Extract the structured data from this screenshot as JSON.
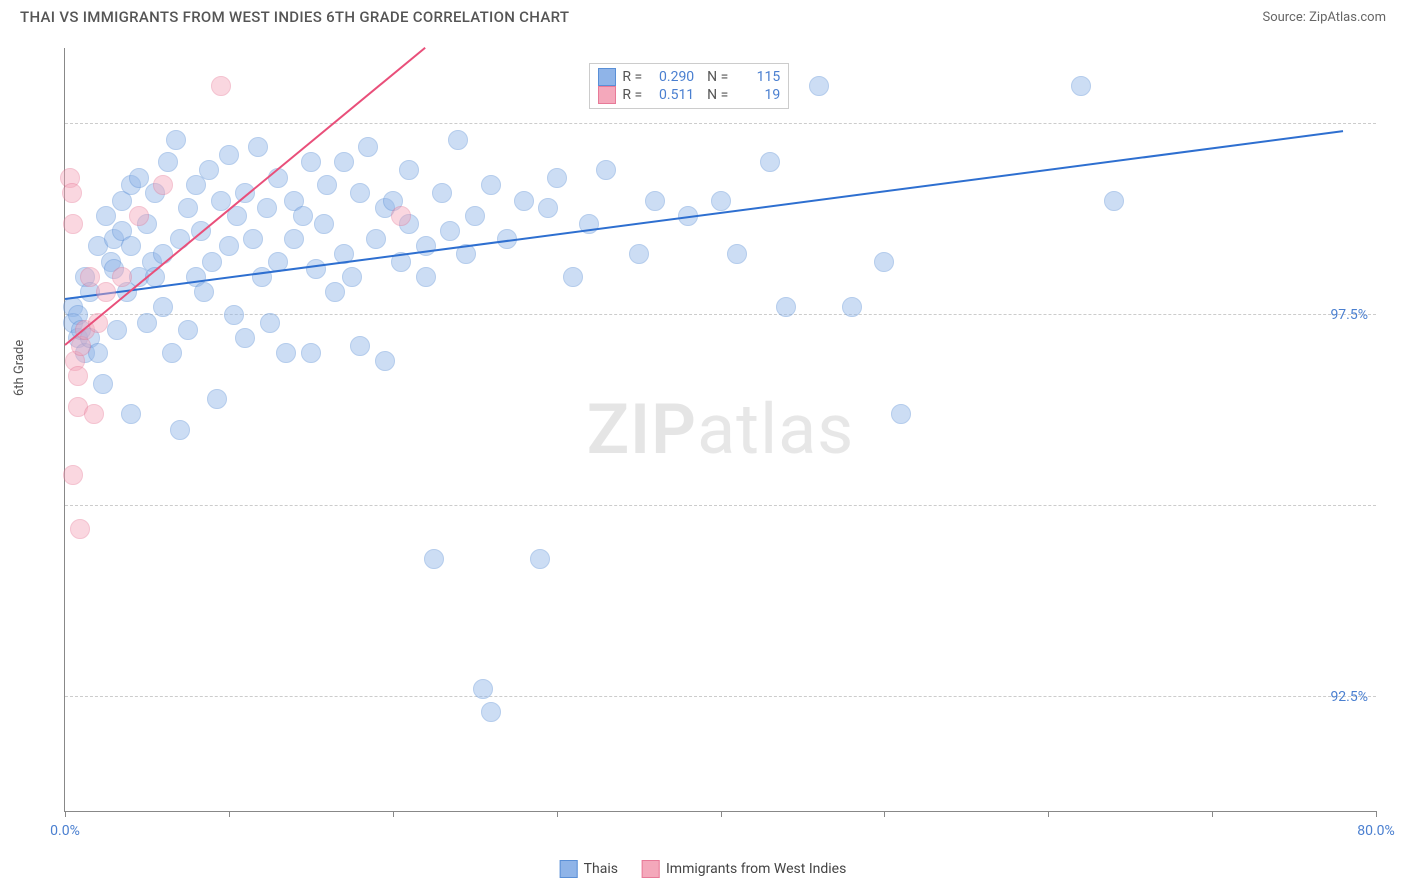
{
  "header": {
    "title": "THAI VS IMMIGRANTS FROM WEST INDIES 6TH GRADE CORRELATION CHART",
    "source": "Source: ZipAtlas.com"
  },
  "chart": {
    "type": "scatter",
    "ylabel": "6th Grade",
    "watermark_a": "ZIP",
    "watermark_b": "atlas",
    "background_color": "#ffffff",
    "grid_color": "#cccccc",
    "axis_color": "#888888",
    "tick_label_color": "#4a7fd0",
    "xlim": [
      0,
      80
    ],
    "ylim": [
      91,
      101
    ],
    "x_ticks": [
      0,
      10,
      20,
      30,
      40,
      50,
      60,
      70,
      80
    ],
    "x_tick_labels": {
      "0": "0.0%",
      "80": "80.0%"
    },
    "y_gridlines": [
      92.5,
      95.0,
      97.5,
      100.0
    ],
    "y_tick_labels": {
      "92.5": "92.5%",
      "95.0": "95.0%",
      "97.5": "97.5%",
      "100.0": "100.0%"
    },
    "marker_radius": 10,
    "marker_opacity": 0.45,
    "trend_line_width": 2,
    "series": [
      {
        "name": "Thais",
        "label": "Thais",
        "fill_color": "#8fb4e8",
        "stroke_color": "#5a8fd6",
        "trend_color": "#2e6fd0",
        "r": "0.290",
        "n": "115",
        "trend": {
          "x1": 0,
          "y1": 97.7,
          "x2": 78,
          "y2": 99.9
        },
        "points": [
          [
            0.5,
            97.6
          ],
          [
            0.5,
            97.4
          ],
          [
            0.8,
            97.2
          ],
          [
            0.8,
            97.5
          ],
          [
            1.0,
            97.3
          ],
          [
            1.2,
            98.0
          ],
          [
            1.2,
            97.0
          ],
          [
            1.5,
            97.8
          ],
          [
            1.5,
            97.2
          ],
          [
            2.0,
            98.4
          ],
          [
            2.0,
            97.0
          ],
          [
            2.3,
            96.6
          ],
          [
            2.5,
            98.8
          ],
          [
            2.8,
            98.2
          ],
          [
            3.0,
            98.1
          ],
          [
            3.0,
            98.5
          ],
          [
            3.2,
            97.3
          ],
          [
            3.5,
            98.6
          ],
          [
            3.5,
            99.0
          ],
          [
            3.8,
            97.8
          ],
          [
            4.0,
            98.4
          ],
          [
            4.0,
            99.2
          ],
          [
            4.0,
            96.2
          ],
          [
            4.5,
            98.0
          ],
          [
            4.5,
            99.3
          ],
          [
            5.0,
            97.4
          ],
          [
            5.0,
            98.7
          ],
          [
            5.3,
            98.2
          ],
          [
            5.5,
            99.1
          ],
          [
            5.5,
            98.0
          ],
          [
            6.0,
            98.3
          ],
          [
            6.0,
            97.6
          ],
          [
            6.3,
            99.5
          ],
          [
            6.5,
            97.0
          ],
          [
            6.8,
            99.8
          ],
          [
            7.0,
            98.5
          ],
          [
            7.0,
            96.0
          ],
          [
            7.5,
            98.9
          ],
          [
            7.5,
            97.3
          ],
          [
            8.0,
            99.2
          ],
          [
            8.0,
            98.0
          ],
          [
            8.3,
            98.6
          ],
          [
            8.5,
            97.8
          ],
          [
            8.8,
            99.4
          ],
          [
            9.0,
            98.2
          ],
          [
            9.3,
            96.4
          ],
          [
            9.5,
            99.0
          ],
          [
            10.0,
            98.4
          ],
          [
            10.0,
            99.6
          ],
          [
            10.3,
            97.5
          ],
          [
            10.5,
            98.8
          ],
          [
            11.0,
            99.1
          ],
          [
            11.0,
            97.2
          ],
          [
            11.5,
            98.5
          ],
          [
            11.8,
            99.7
          ],
          [
            12.0,
            98.0
          ],
          [
            12.3,
            98.9
          ],
          [
            12.5,
            97.4
          ],
          [
            13.0,
            99.3
          ],
          [
            13.0,
            98.2
          ],
          [
            13.5,
            97.0
          ],
          [
            14.0,
            99.0
          ],
          [
            14.0,
            98.5
          ],
          [
            14.5,
            98.8
          ],
          [
            15.0,
            97.0
          ],
          [
            15.0,
            99.5
          ],
          [
            15.3,
            98.1
          ],
          [
            15.8,
            98.7
          ],
          [
            16.0,
            99.2
          ],
          [
            16.5,
            97.8
          ],
          [
            17.0,
            99.5
          ],
          [
            17.0,
            98.3
          ],
          [
            17.5,
            98.0
          ],
          [
            18.0,
            99.1
          ],
          [
            18.0,
            97.1
          ],
          [
            18.5,
            99.7
          ],
          [
            19.0,
            98.5
          ],
          [
            19.5,
            98.9
          ],
          [
            19.5,
            96.9
          ],
          [
            20.0,
            99.0
          ],
          [
            20.5,
            98.2
          ],
          [
            21.0,
            98.7
          ],
          [
            21.0,
            99.4
          ],
          [
            22.0,
            98.4
          ],
          [
            22.0,
            98.0
          ],
          [
            22.5,
            94.3
          ],
          [
            23.0,
            99.1
          ],
          [
            23.5,
            98.6
          ],
          [
            24.0,
            99.8
          ],
          [
            24.5,
            98.3
          ],
          [
            25.0,
            98.8
          ],
          [
            25.5,
            92.6
          ],
          [
            26.0,
            99.2
          ],
          [
            26.0,
            92.3
          ],
          [
            27.0,
            98.5
          ],
          [
            28.0,
            99.0
          ],
          [
            29.0,
            94.3
          ],
          [
            29.5,
            98.9
          ],
          [
            30.0,
            99.3
          ],
          [
            31.0,
            98.0
          ],
          [
            32.0,
            98.7
          ],
          [
            33.0,
            99.4
          ],
          [
            35.0,
            98.3
          ],
          [
            36.0,
            99.0
          ],
          [
            38.0,
            98.8
          ],
          [
            40.0,
            99.0
          ],
          [
            41.0,
            98.3
          ],
          [
            43.0,
            99.5
          ],
          [
            44.0,
            97.6
          ],
          [
            46.0,
            100.5
          ],
          [
            48.0,
            97.6
          ],
          [
            50.0,
            98.2
          ],
          [
            51.0,
            96.2
          ],
          [
            62.0,
            100.5
          ],
          [
            64.0,
            99.0
          ]
        ]
      },
      {
        "name": "Immigrants from West Indies",
        "label": "Immigrants from West Indies",
        "fill_color": "#f4a8bb",
        "stroke_color": "#e77a98",
        "trend_color": "#e94f7a",
        "r": "0.511",
        "n": "19",
        "trend": {
          "x1": 0,
          "y1": 97.1,
          "x2": 22,
          "y2": 101.0
        },
        "points": [
          [
            0.3,
            99.3
          ],
          [
            0.4,
            99.1
          ],
          [
            0.5,
            98.7
          ],
          [
            0.5,
            95.4
          ],
          [
            0.6,
            96.9
          ],
          [
            0.8,
            96.7
          ],
          [
            0.8,
            96.3
          ],
          [
            0.9,
            94.7
          ],
          [
            1.0,
            97.1
          ],
          [
            1.2,
            97.3
          ],
          [
            1.5,
            98.0
          ],
          [
            1.8,
            96.2
          ],
          [
            2.0,
            97.4
          ],
          [
            2.5,
            97.8
          ],
          [
            3.5,
            98.0
          ],
          [
            4.5,
            98.8
          ],
          [
            6.0,
            99.2
          ],
          [
            9.5,
            100.5
          ],
          [
            20.5,
            98.8
          ]
        ]
      }
    ],
    "stats_box": {
      "left_pct": 40,
      "top_pct": 2
    },
    "legend": {
      "items": [
        {
          "label": "Thais",
          "fill": "#8fb4e8",
          "stroke": "#5a8fd6"
        },
        {
          "label": "Immigrants from West Indies",
          "fill": "#f4a8bb",
          "stroke": "#e77a98"
        }
      ]
    }
  }
}
